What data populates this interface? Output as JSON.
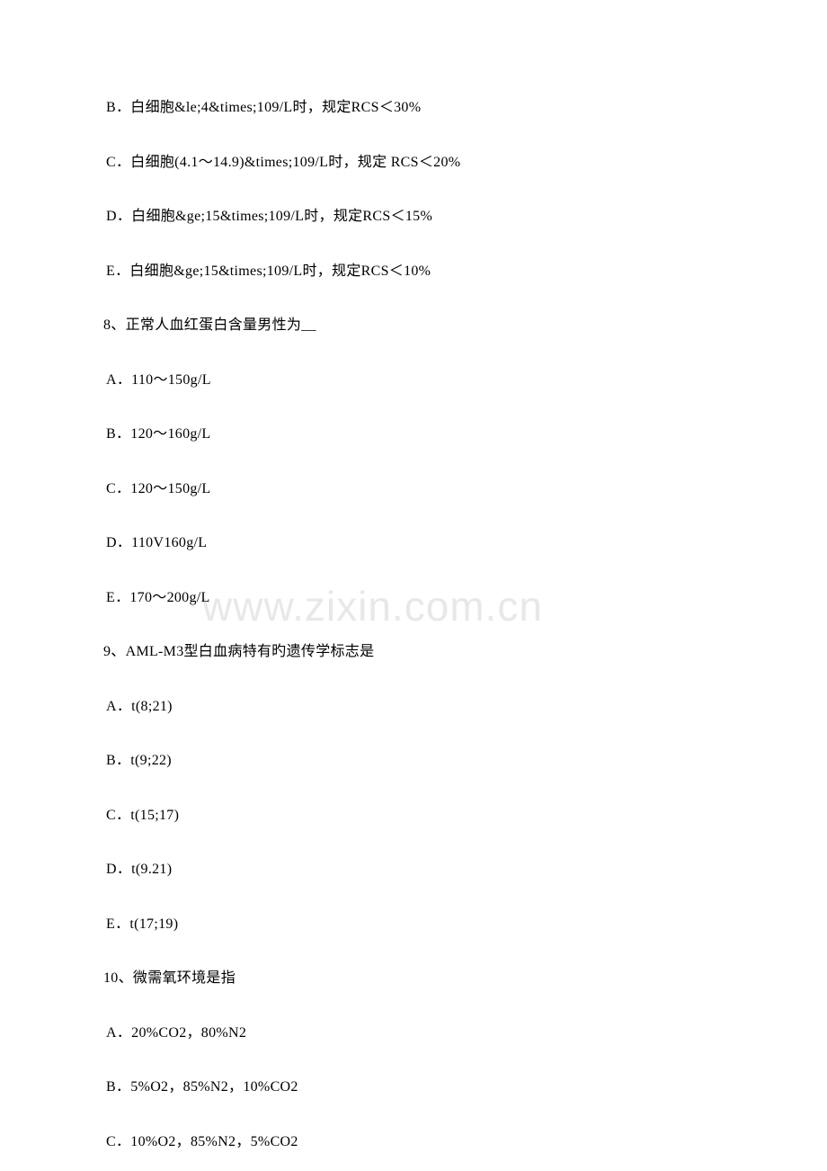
{
  "watermark": "www.zixin.com.cn",
  "items": [
    {
      "type": "option",
      "text": "B．白细胞&le;4&times;109/L时，规定RCS＜30%"
    },
    {
      "type": "option",
      "text": "C．白细胞(4.1～14.9)&times;109/L时，规定 RCS＜20%"
    },
    {
      "type": "option",
      "text": "D．白细胞&ge;15&times;109/L时，规定RCS＜15%"
    },
    {
      "type": "option",
      "text": "E．白细胞&ge;15&times;109/L时，规定RCS＜10%"
    },
    {
      "type": "question",
      "text": "8、正常人血红蛋白含量男性为__"
    },
    {
      "type": "option",
      "text": "A．110～150g/L"
    },
    {
      "type": "option",
      "text": "B．120～160g/L"
    },
    {
      "type": "option",
      "text": "C．120～150g/L"
    },
    {
      "type": "option",
      "text": "D．110V160g/L"
    },
    {
      "type": "option",
      "text": "E．170～200g/L"
    },
    {
      "type": "question",
      "text": "9、AML-M3型白血病特有旳遗传学标志是"
    },
    {
      "type": "option",
      "text": "A．t(8;21)"
    },
    {
      "type": "option",
      "text": "B．t(9;22)"
    },
    {
      "type": "option",
      "text": "C．t(15;17)"
    },
    {
      "type": "option",
      "text": "D．t(9.21)"
    },
    {
      "type": "option",
      "text": "E．t(17;19)"
    },
    {
      "type": "question",
      "text": "10、微需氧环境是指"
    },
    {
      "type": "option",
      "text": "A．20%CO2，80%N2"
    },
    {
      "type": "option",
      "text": "B．5%O2，85%N2，10%CO2"
    },
    {
      "type": "option",
      "text": "C．10%O2，85%N2，5%CO2"
    }
  ]
}
